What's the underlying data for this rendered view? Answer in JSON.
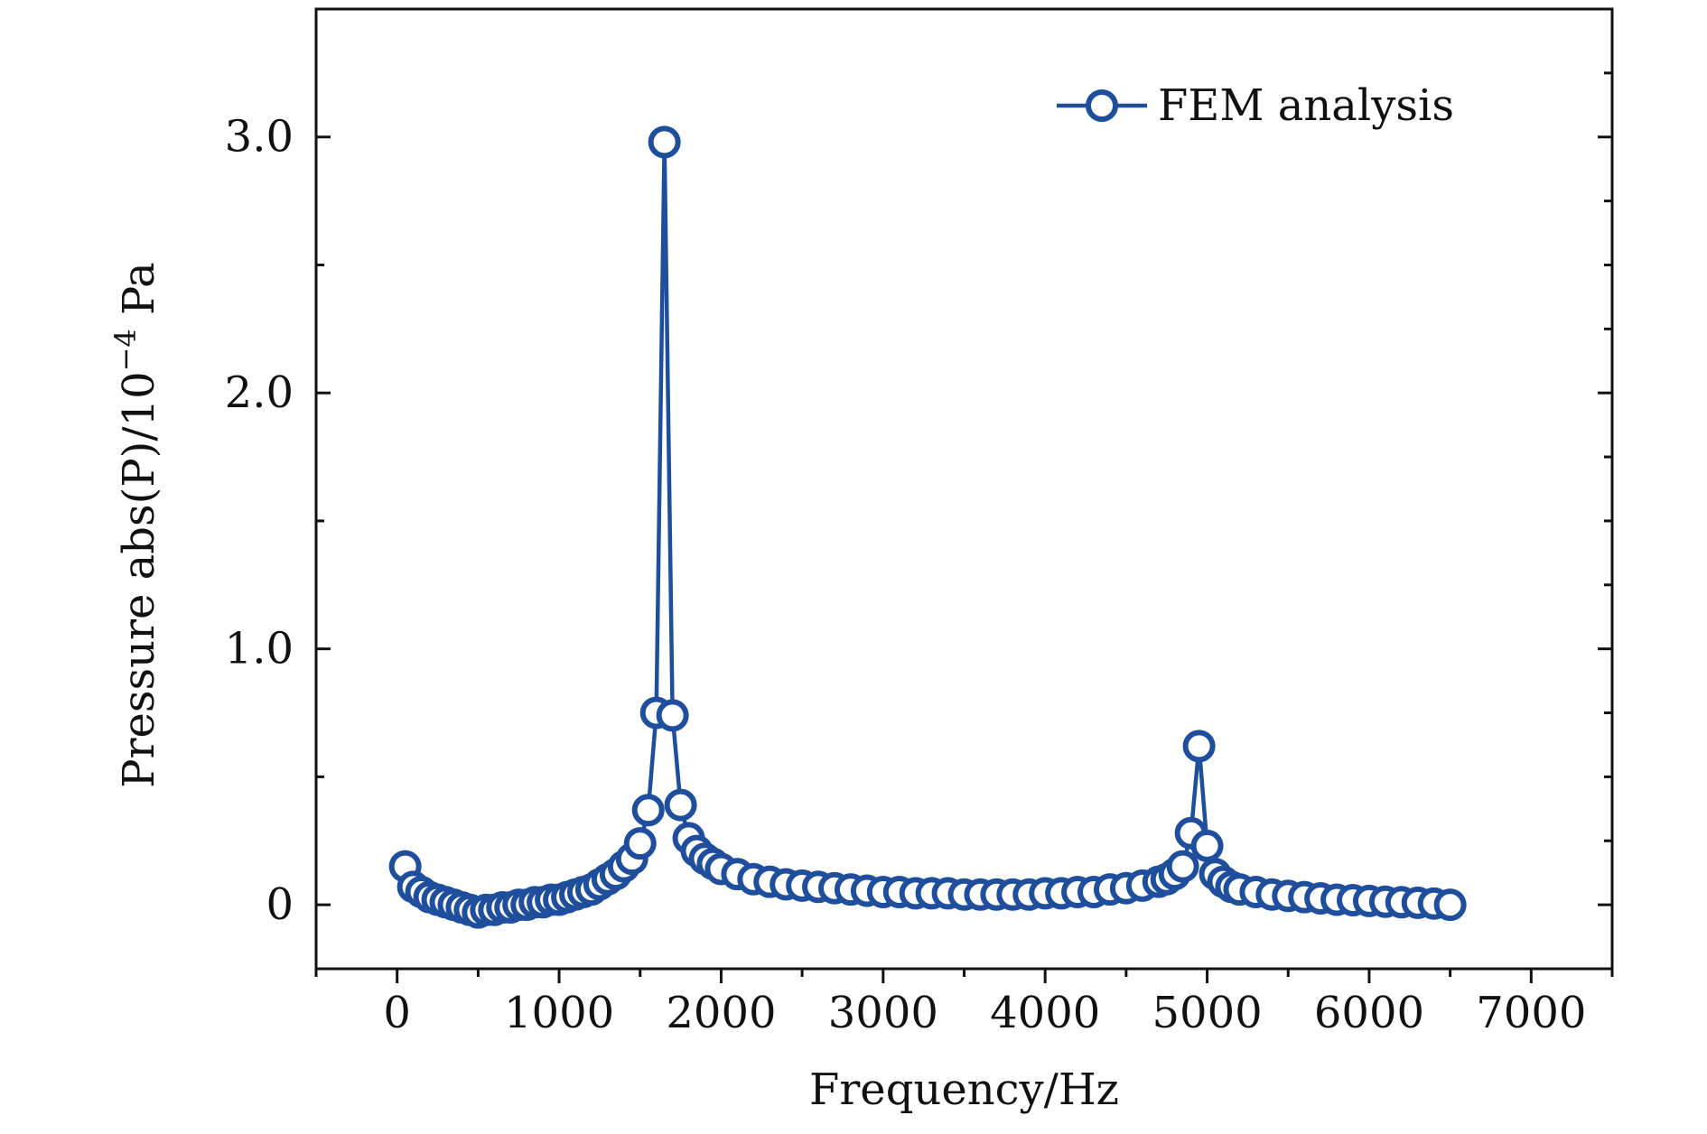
{
  "chart_data": {
    "type": "line",
    "title": "",
    "xlabel": "Frequency/Hz",
    "ylabel": "Pressure abs(P)/10",
    "ylabel_exponent": "−4",
    "ylabel_unit": " Pa",
    "xlim": [
      -500,
      7500
    ],
    "ylim": [
      -0.25,
      3.5
    ],
    "x_ticks": [
      0,
      1000,
      2000,
      3000,
      4000,
      5000,
      6000,
      7000
    ],
    "x_tick_labels": [
      "0",
      "1000",
      "2000",
      "3000",
      "4000",
      "5000",
      "6000",
      "7000"
    ],
    "y_ticks": [
      0,
      1.0,
      2.0,
      3.0
    ],
    "y_tick_labels": [
      "0",
      "1.0",
      "2.0",
      "3.0"
    ],
    "grid": false,
    "legend_position": "top-right",
    "series": [
      {
        "name": "FEM analysis",
        "color": "#1f4e9c",
        "marker": "open-circle",
        "x": [
          50,
          100,
          150,
          200,
          250,
          300,
          350,
          400,
          450,
          500,
          550,
          600,
          650,
          700,
          750,
          800,
          850,
          900,
          950,
          1000,
          1050,
          1100,
          1150,
          1200,
          1250,
          1300,
          1350,
          1400,
          1450,
          1500,
          1550,
          1600,
          1650,
          1700,
          1750,
          1800,
          1850,
          1900,
          1950,
          2000,
          2100,
          2200,
          2300,
          2400,
          2500,
          2600,
          2700,
          2800,
          2900,
          3000,
          3100,
          3200,
          3300,
          3400,
          3500,
          3600,
          3700,
          3800,
          3900,
          4000,
          4100,
          4200,
          4300,
          4400,
          4500,
          4600,
          4700,
          4750,
          4800,
          4850,
          4900,
          4950,
          5000,
          5050,
          5100,
          5150,
          5200,
          5300,
          5400,
          5500,
          5600,
          5700,
          5800,
          5900,
          6000,
          6100,
          6200,
          6300,
          6400,
          6500
        ],
        "y": [
          0.15,
          0.07,
          0.05,
          0.03,
          0.02,
          0.01,
          0.0,
          -0.01,
          -0.02,
          -0.03,
          -0.02,
          -0.02,
          -0.01,
          -0.01,
          0.0,
          0.0,
          0.01,
          0.01,
          0.02,
          0.02,
          0.03,
          0.04,
          0.05,
          0.06,
          0.08,
          0.1,
          0.12,
          0.15,
          0.18,
          0.24,
          0.37,
          0.75,
          2.98,
          0.74,
          0.39,
          0.26,
          0.21,
          0.18,
          0.16,
          0.14,
          0.12,
          0.1,
          0.09,
          0.08,
          0.075,
          0.07,
          0.065,
          0.06,
          0.055,
          0.05,
          0.05,
          0.045,
          0.045,
          0.045,
          0.04,
          0.04,
          0.04,
          0.04,
          0.04,
          0.045,
          0.045,
          0.05,
          0.05,
          0.06,
          0.065,
          0.075,
          0.09,
          0.1,
          0.12,
          0.15,
          0.28,
          0.62,
          0.23,
          0.12,
          0.09,
          0.07,
          0.06,
          0.05,
          0.04,
          0.035,
          0.03,
          0.025,
          0.02,
          0.018,
          0.015,
          0.012,
          0.01,
          0.008,
          0.005,
          0.0
        ]
      }
    ]
  }
}
